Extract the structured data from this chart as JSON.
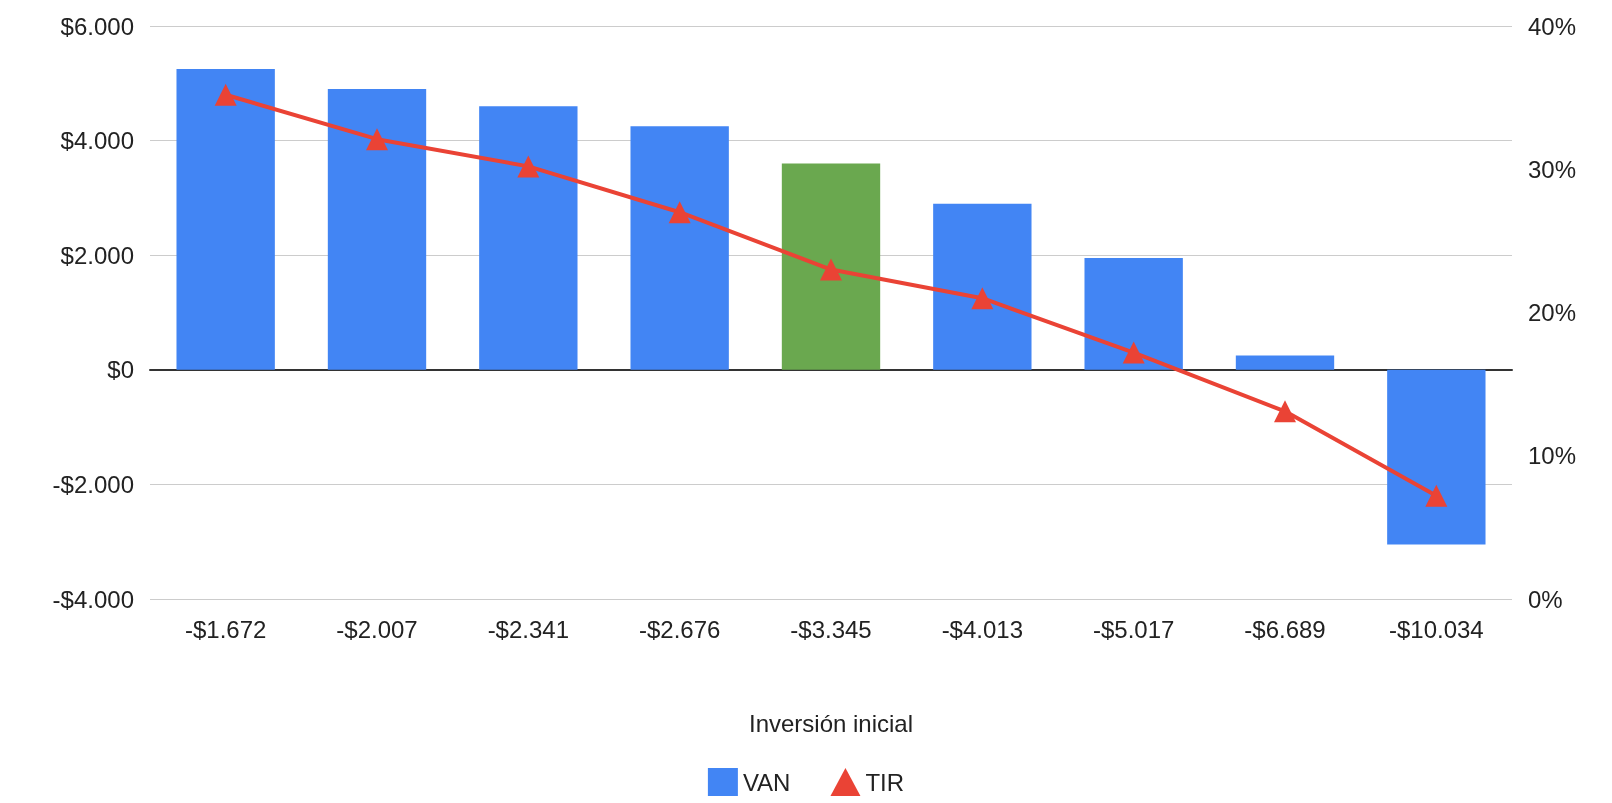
{
  "chart_data": {
    "type": "bar",
    "xlabel": "Inversión inicial",
    "categories": [
      "-$1.672",
      "-$2.007",
      "-$2.341",
      "-$2.676",
      "-$3.345",
      "-$4.013",
      "-$5.017",
      "-$6.689",
      "-$10.034"
    ],
    "series": [
      {
        "name": "VAN",
        "color": "#4285f4",
        "colors": [
          "#4285f4",
          "#4285f4",
          "#4285f4",
          "#4285f4",
          "#6aa84f",
          "#4285f4",
          "#4285f4",
          "#4285f4",
          "#4285f4"
        ],
        "values": [
          5250,
          4900,
          4600,
          4250,
          3600,
          2900,
          1950,
          250,
          -3050
        ]
      },
      {
        "name": "TIR",
        "type": "line",
        "axis": "y2",
        "color": "#ea4335",
        "marker": "triangle",
        "values": [
          35.2,
          32.1,
          30.2,
          27.0,
          23.0,
          21.0,
          17.2,
          13.1,
          7.2
        ]
      }
    ],
    "ylim": [
      -4000,
      6000
    ],
    "yticks": [
      {
        "value": -4000,
        "label": "-$4.000"
      },
      {
        "value": -2000,
        "label": "-$2.000"
      },
      {
        "value": 0,
        "label": "$0"
      },
      {
        "value": 2000,
        "label": "$2.000"
      },
      {
        "value": 4000,
        "label": "$4.000"
      },
      {
        "value": 6000,
        "label": "$6.000"
      }
    ],
    "y2lim": [
      0,
      40
    ],
    "y2ticks": [
      {
        "value": 0,
        "label": "0%"
      },
      {
        "value": 10,
        "label": "10%"
      },
      {
        "value": 20,
        "label": "20%"
      },
      {
        "value": 30,
        "label": "30%"
      },
      {
        "value": 40,
        "label": "40%"
      }
    ],
    "grid": "y",
    "legend": "bottom"
  }
}
